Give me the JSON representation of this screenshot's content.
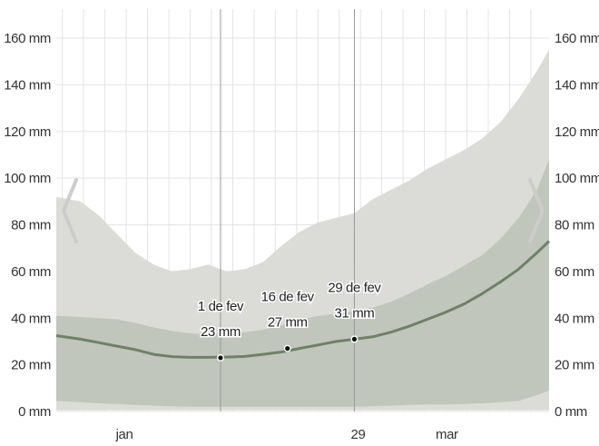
{
  "chart_data": {
    "type": "area",
    "y_unit": "mm",
    "ylim": [
      0,
      160
    ],
    "xlim": [
      -10,
      71
    ],
    "y_ticks": [
      {
        "value": 0,
        "label": "0 mm"
      },
      {
        "value": 20,
        "label": "20 mm"
      },
      {
        "value": 40,
        "label": "40 mm"
      },
      {
        "value": 60,
        "label": "60 mm"
      },
      {
        "value": 80,
        "label": "80 mm"
      },
      {
        "value": 100,
        "label": "100 mm"
      },
      {
        "value": 120,
        "label": "120 mm"
      },
      {
        "value": 140,
        "label": "140 mm"
      },
      {
        "value": 160,
        "label": "160 mm"
      }
    ],
    "x_ticks": [
      {
        "day": 0,
        "label": "jan"
      },
      {
        "day": 39,
        "label": "29"
      },
      {
        "day": 53,
        "label": "mar"
      }
    ],
    "grid": true,
    "colors": {
      "outer_band": "#d9dad6",
      "inner_band": "#bec3ba",
      "median_line": "#6f8168",
      "grid": "#e3e3e3",
      "marker_line": "#999999",
      "nav_arrow": "#cccccc"
    },
    "x": [
      -10,
      -6,
      -3,
      0,
      3,
      6,
      9,
      12,
      15,
      18,
      21,
      24,
      27,
      30,
      33,
      36,
      39,
      42,
      45,
      48,
      51,
      54,
      57,
      60,
      63,
      66,
      69,
      71
    ],
    "median": [
      32.5,
      31,
      29.5,
      28,
      26.5,
      24.5,
      23.5,
      23.2,
      23.2,
      23.3,
      23.6,
      24.5,
      25.5,
      27,
      28.5,
      30,
      31,
      32,
      34,
      36.5,
      39.5,
      42.5,
      46,
      50.5,
      55.5,
      61,
      68,
      73
    ],
    "p25": [
      4.5,
      4,
      3.5,
      3.2,
      2.8,
      2.5,
      2.2,
      2,
      2,
      2,
      2,
      2,
      2,
      2,
      2,
      2,
      2,
      2.2,
      2.5,
      2.8,
      3,
      3,
      3.2,
      3.5,
      4,
      4.5,
      7,
      9
    ],
    "p75": [
      41,
      40.5,
      40,
      39.5,
      38,
      36,
      34.5,
      33.5,
      33,
      33.5,
      34,
      35,
      37,
      39,
      41,
      42,
      43,
      44.5,
      47,
      50.5,
      54.5,
      58,
      62.5,
      67,
      74,
      83,
      95,
      108
    ],
    "p10": [
      0.5,
      0.5,
      0.5,
      0.5,
      0.5,
      0.5,
      0.5,
      0.5,
      0.5,
      0.5,
      0.5,
      0.5,
      0.5,
      0.5,
      0.5,
      0.5,
      0.5,
      0.5,
      0.5,
      0.5,
      0.5,
      0.5,
      0.5,
      0.5,
      0.5,
      0.5,
      0.5,
      0.5
    ],
    "p90": [
      92,
      90,
      84,
      76,
      68,
      63,
      60,
      61,
      63,
      60,
      61,
      64,
      71,
      77,
      81,
      83,
      85,
      91,
      95,
      99,
      104,
      108,
      112,
      117,
      124,
      134,
      146,
      155
    ],
    "annotations": [
      {
        "day": 17,
        "value": 23,
        "date_label": "1 de fev",
        "value_label": "23 mm"
      },
      {
        "day": 28,
        "value": 27,
        "date_label": "16 de fev",
        "value_label": "27 mm"
      },
      {
        "day": 39,
        "value": 31,
        "date_label": "29 de fev",
        "value_label": "31 mm"
      }
    ],
    "nav": {
      "prev_icon": "chevron-left-icon",
      "next_icon": "chevron-right-icon"
    }
  }
}
